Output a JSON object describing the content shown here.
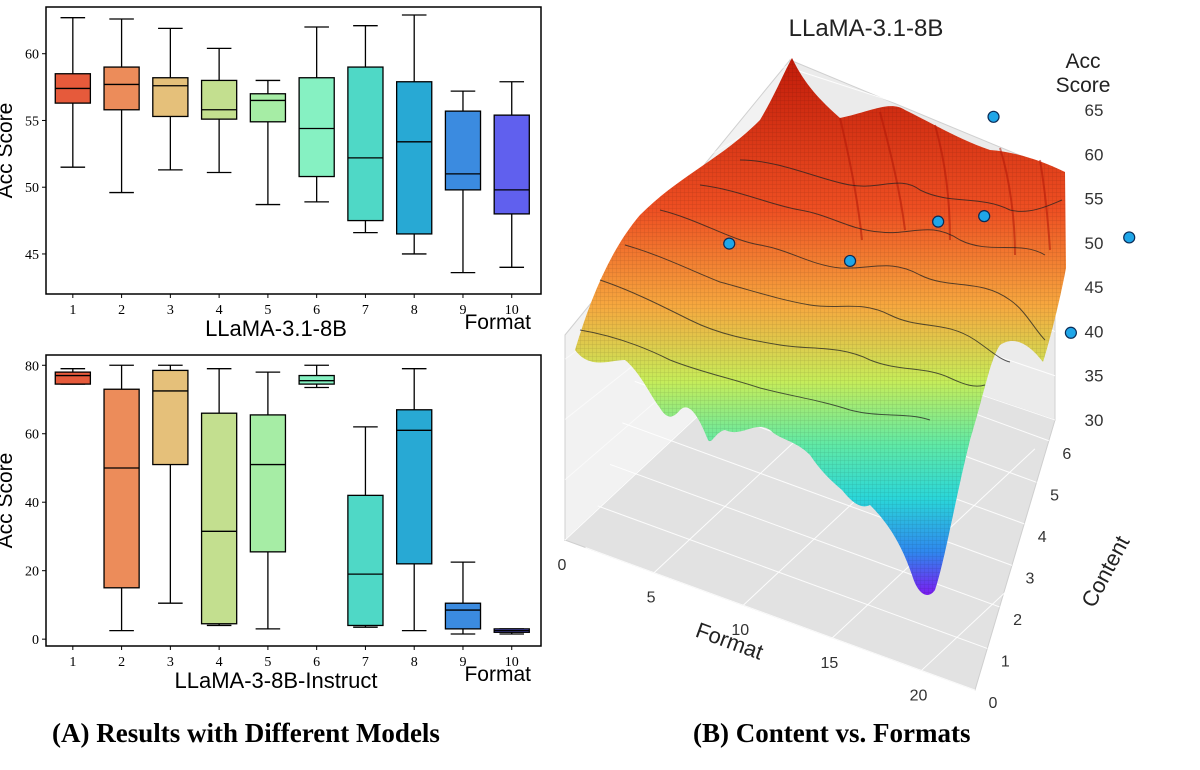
{
  "panel_a": {
    "caption": "(A) Results with Different Models"
  },
  "panel_b": {
    "caption": "(B) Content vs. Formats"
  },
  "chart_data": [
    {
      "type": "box",
      "xlabel": "LLaMA-3.1-8B",
      "format_label": "Format",
      "ylabel": "Acc Score",
      "ylim": [
        42,
        63.5
      ],
      "yticks": [
        45,
        50,
        55,
        60
      ],
      "categories": [
        "1",
        "2",
        "3",
        "4",
        "5",
        "6",
        "7",
        "8",
        "9",
        "10"
      ],
      "colors": [
        "#e65a3b",
        "#ec8c5a",
        "#e5c07a",
        "#c3df8f",
        "#a6eda5",
        "#86f1c2",
        "#4fd8c6",
        "#28a9d4",
        "#3b8be0",
        "#6060ee"
      ],
      "boxes": [
        {
          "min": 51.5,
          "q1": 56.3,
          "median": 57.4,
          "q3": 58.5,
          "max": 62.7
        },
        {
          "min": 49.6,
          "q1": 55.8,
          "median": 57.7,
          "q3": 59.0,
          "max": 62.6
        },
        {
          "min": 51.3,
          "q1": 55.3,
          "median": 57.6,
          "q3": 58.2,
          "max": 61.9
        },
        {
          "min": 51.1,
          "q1": 55.1,
          "median": 55.8,
          "q3": 58.0,
          "max": 60.4
        },
        {
          "min": 48.7,
          "q1": 54.9,
          "median": 56.5,
          "q3": 57.0,
          "max": 58.0
        },
        {
          "min": 48.9,
          "q1": 50.8,
          "median": 54.4,
          "q3": 58.2,
          "max": 62.0
        },
        {
          "min": 46.6,
          "q1": 47.5,
          "median": 52.2,
          "q3": 59.0,
          "max": 62.1
        },
        {
          "min": 45.0,
          "q1": 46.5,
          "median": 53.4,
          "q3": 57.9,
          "max": 62.9
        },
        {
          "min": 43.6,
          "q1": 49.8,
          "median": 51.0,
          "q3": 55.7,
          "max": 57.2
        },
        {
          "min": 44.0,
          "q1": 48.0,
          "median": 49.8,
          "q3": 55.4,
          "max": 57.9
        }
      ]
    },
    {
      "type": "box",
      "xlabel": "LLaMA-3-8B-Instruct",
      "format_label": "Format",
      "ylabel": "Acc Score",
      "ylim": [
        -2,
        83
      ],
      "yticks": [
        0,
        20,
        40,
        60,
        80
      ],
      "categories": [
        "1",
        "2",
        "3",
        "4",
        "5",
        "6",
        "7",
        "8",
        "9",
        "10"
      ],
      "colors": [
        "#e65a3b",
        "#ec8c5a",
        "#e5c07a",
        "#c3df8f",
        "#a6eda5",
        "#86f1c2",
        "#4fd8c6",
        "#28a9d4",
        "#3b8be0",
        "#6060ee"
      ],
      "boxes": [
        {
          "min": 74.5,
          "q1": 74.5,
          "median": 77.0,
          "q3": 78.0,
          "max": 79.0
        },
        {
          "min": 2.5,
          "q1": 15.0,
          "median": 50.0,
          "q3": 73.0,
          "max": 80.0
        },
        {
          "min": 10.5,
          "q1": 51.0,
          "median": 72.5,
          "q3": 78.5,
          "max": 80.0
        },
        {
          "min": 4.0,
          "q1": 4.5,
          "median": 31.5,
          "q3": 66.0,
          "max": 79.0
        },
        {
          "min": 3.0,
          "q1": 25.5,
          "median": 51.0,
          "q3": 65.5,
          "max": 78.0
        },
        {
          "min": 73.5,
          "q1": 74.5,
          "median": 75.5,
          "q3": 77.0,
          "max": 80.0
        },
        {
          "min": 3.5,
          "q1": 4.0,
          "median": 19.0,
          "q3": 42.0,
          "max": 62.0
        },
        {
          "min": 2.5,
          "q1": 22.0,
          "median": 61.0,
          "q3": 67.0,
          "max": 79.0
        },
        {
          "min": 1.5,
          "q1": 3.0,
          "median": 8.5,
          "q3": 10.5,
          "max": 22.5
        },
        {
          "min": 1.5,
          "q1": 2.0,
          "median": 2.5,
          "q3": 3.0,
          "max": 3.0
        }
      ]
    },
    {
      "type": "surface3d",
      "title": "LLaMA-3.1-8B",
      "xlabel": "Format",
      "ylabel": "Content",
      "zlabel": "Acc\nScore",
      "zlabel_lines": [
        "Acc",
        "Score"
      ],
      "xticks": [
        0,
        5,
        10,
        15,
        20
      ],
      "yticks": [
        0,
        1,
        2,
        3,
        4,
        5,
        6
      ],
      "zticks": [
        30,
        35,
        40,
        45,
        50,
        55,
        60,
        65
      ],
      "xlim": [
        0,
        23
      ],
      "ylim": [
        0,
        6.5
      ],
      "zlim": [
        28,
        66
      ],
      "colormap": "rainbow",
      "highlighted_points": [
        {
          "format": 3,
          "content": 3.2,
          "acc": 54
        },
        {
          "format": 9,
          "content": 3.6,
          "acc": 55
        },
        {
          "format": 12,
          "content": 4.6,
          "acc": 58
        },
        {
          "format": 14,
          "content": 4.9,
          "acc": 59
        },
        {
          "format": 12,
          "content": 6.2,
          "acc": 64
        },
        {
          "format": 21,
          "content": 3.8,
          "acc": 55
        },
        {
          "format": 20,
          "content": 6.0,
          "acc": 57
        }
      ]
    }
  ]
}
